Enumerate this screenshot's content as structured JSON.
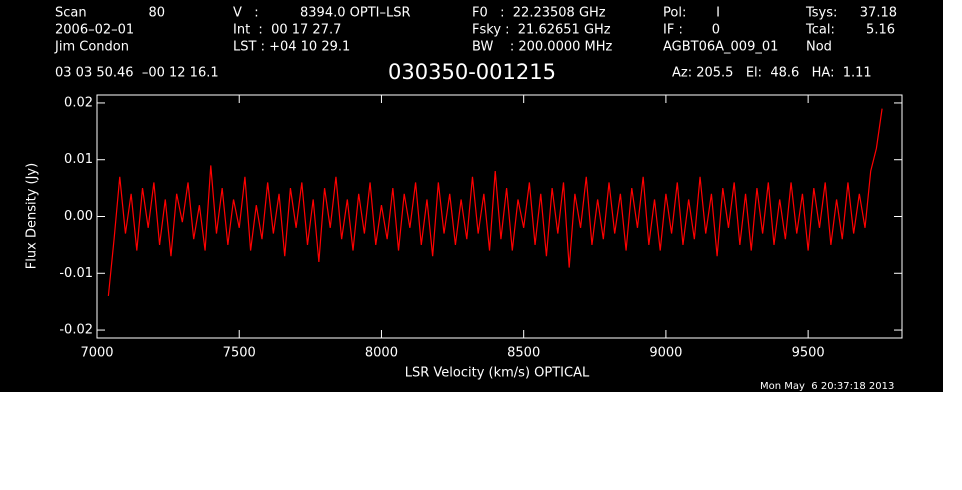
{
  "chart_data": {
    "type": "line",
    "title": "030350-001215",
    "header": [
      [
        "Scan",
        "80",
        "V   :",
        "8394.0 OPTI–LSR",
        "F0   :  22.23508 GHz",
        "Pol:",
        "I",
        "Tsys:",
        "37.18"
      ],
      [
        "2006–02–01",
        "Int  :  00 17 27.7",
        "Fsky :  21.62651 GHz",
        "IF :",
        "0",
        "Tcal:",
        "5.16"
      ],
      [
        "Jim Condon",
        "LST : +04 10 29.1",
        "BW    : 200.0000 MHz",
        "AGBT06A_009_01",
        "Nod"
      ],
      [
        "03 03 50.46  –00 12 16.1",
        "Az: 205.5   El:  48.6   HA:  1.11"
      ]
    ],
    "xlabel": "LSR Velocity (km/s) OPTICAL",
    "ylabel": "Flux Density (Jy)",
    "timestamp": "Mon May  6 20:37:18 2013",
    "xlim": [
      7000,
      9830
    ],
    "ylim": [
      -0.0214,
      0.0214
    ],
    "xticks": [
      7000,
      7500,
      8000,
      8500,
      9000,
      9500
    ],
    "yticks": [
      -0.02,
      -0.01,
      {
        "value": 0,
        "label": "0.00"
      },
      0.01,
      0.02
    ],
    "x": [
      7040,
      7060,
      7080,
      7100,
      7120,
      7140,
      7160,
      7180,
      7200,
      7220,
      7240,
      7260,
      7280,
      7300,
      7320,
      7340,
      7360,
      7380,
      7400,
      7420,
      7440,
      7460,
      7480,
      7500,
      7520,
      7540,
      7560,
      7580,
      7600,
      7620,
      7640,
      7660,
      7680,
      7700,
      7720,
      7740,
      7760,
      7780,
      7800,
      7820,
      7840,
      7860,
      7880,
      7900,
      7920,
      7940,
      7960,
      7980,
      8000,
      8020,
      8040,
      8060,
      8080,
      8100,
      8120,
      8140,
      8160,
      8180,
      8200,
      8220,
      8240,
      8260,
      8280,
      8300,
      8320,
      8340,
      8360,
      8380,
      8400,
      8420,
      8440,
      8460,
      8480,
      8500,
      8520,
      8540,
      8560,
      8580,
      8600,
      8620,
      8640,
      8660,
      8680,
      8700,
      8720,
      8740,
      8760,
      8780,
      8800,
      8820,
      8840,
      8860,
      8880,
      8900,
      8920,
      8940,
      8960,
      8980,
      9000,
      9020,
      9040,
      9060,
      9080,
      9100,
      9120,
      9140,
      9160,
      9180,
      9200,
      9220,
      9240,
      9260,
      9280,
      9300,
      9320,
      9340,
      9360,
      9380,
      9400,
      9420,
      9440,
      9460,
      9480,
      9500,
      9520,
      9540,
      9560,
      9580,
      9600,
      9620,
      9640,
      9660,
      9680,
      9700,
      9720,
      9740,
      9760
    ],
    "series": [
      {
        "color": "#ff0000",
        "values": [
          -0.014,
          -0.004,
          0.007,
          -0.003,
          0.004,
          -0.006,
          0.005,
          -0.002,
          0.006,
          -0.005,
          0.003,
          -0.007,
          0.004,
          -0.001,
          0.006,
          -0.004,
          0.002,
          -0.006,
          0.009,
          -0.003,
          0.005,
          -0.005,
          0.003,
          -0.002,
          0.007,
          -0.006,
          0.002,
          -0.004,
          0.006,
          -0.003,
          0.004,
          -0.007,
          0.005,
          -0.002,
          0.006,
          -0.005,
          0.003,
          -0.008,
          0.005,
          -0.002,
          0.007,
          -0.004,
          0.003,
          -0.006,
          0.004,
          -0.003,
          0.006,
          -0.005,
          0.002,
          -0.004,
          0.005,
          -0.006,
          0.004,
          -0.002,
          0.006,
          -0.005,
          0.003,
          -0.007,
          0.006,
          -0.003,
          0.004,
          -0.005,
          0.003,
          -0.004,
          0.007,
          -0.003,
          0.004,
          -0.006,
          0.008,
          -0.004,
          0.005,
          -0.006,
          0.003,
          -0.002,
          0.006,
          -0.005,
          0.004,
          -0.007,
          0.005,
          -0.003,
          0.006,
          -0.009,
          0.004,
          -0.002,
          0.007,
          -0.005,
          0.003,
          -0.004,
          0.006,
          -0.003,
          0.004,
          -0.006,
          0.005,
          -0.002,
          0.007,
          -0.005,
          0.003,
          -0.006,
          0.004,
          -0.003,
          0.006,
          -0.005,
          0.003,
          -0.004,
          0.007,
          -0.003,
          0.004,
          -0.007,
          0.005,
          -0.002,
          0.006,
          -0.005,
          0.004,
          -0.006,
          0.005,
          -0.003,
          0.006,
          -0.005,
          0.003,
          -0.004,
          0.006,
          -0.003,
          0.004,
          -0.006,
          0.005,
          -0.002,
          0.006,
          -0.005,
          0.003,
          -0.004,
          0.006,
          -0.003,
          0.004,
          -0.002,
          0.008,
          0.012,
          0.019
        ]
      }
    ],
    "background": "#000000",
    "axis_color": "#ffffff"
  }
}
